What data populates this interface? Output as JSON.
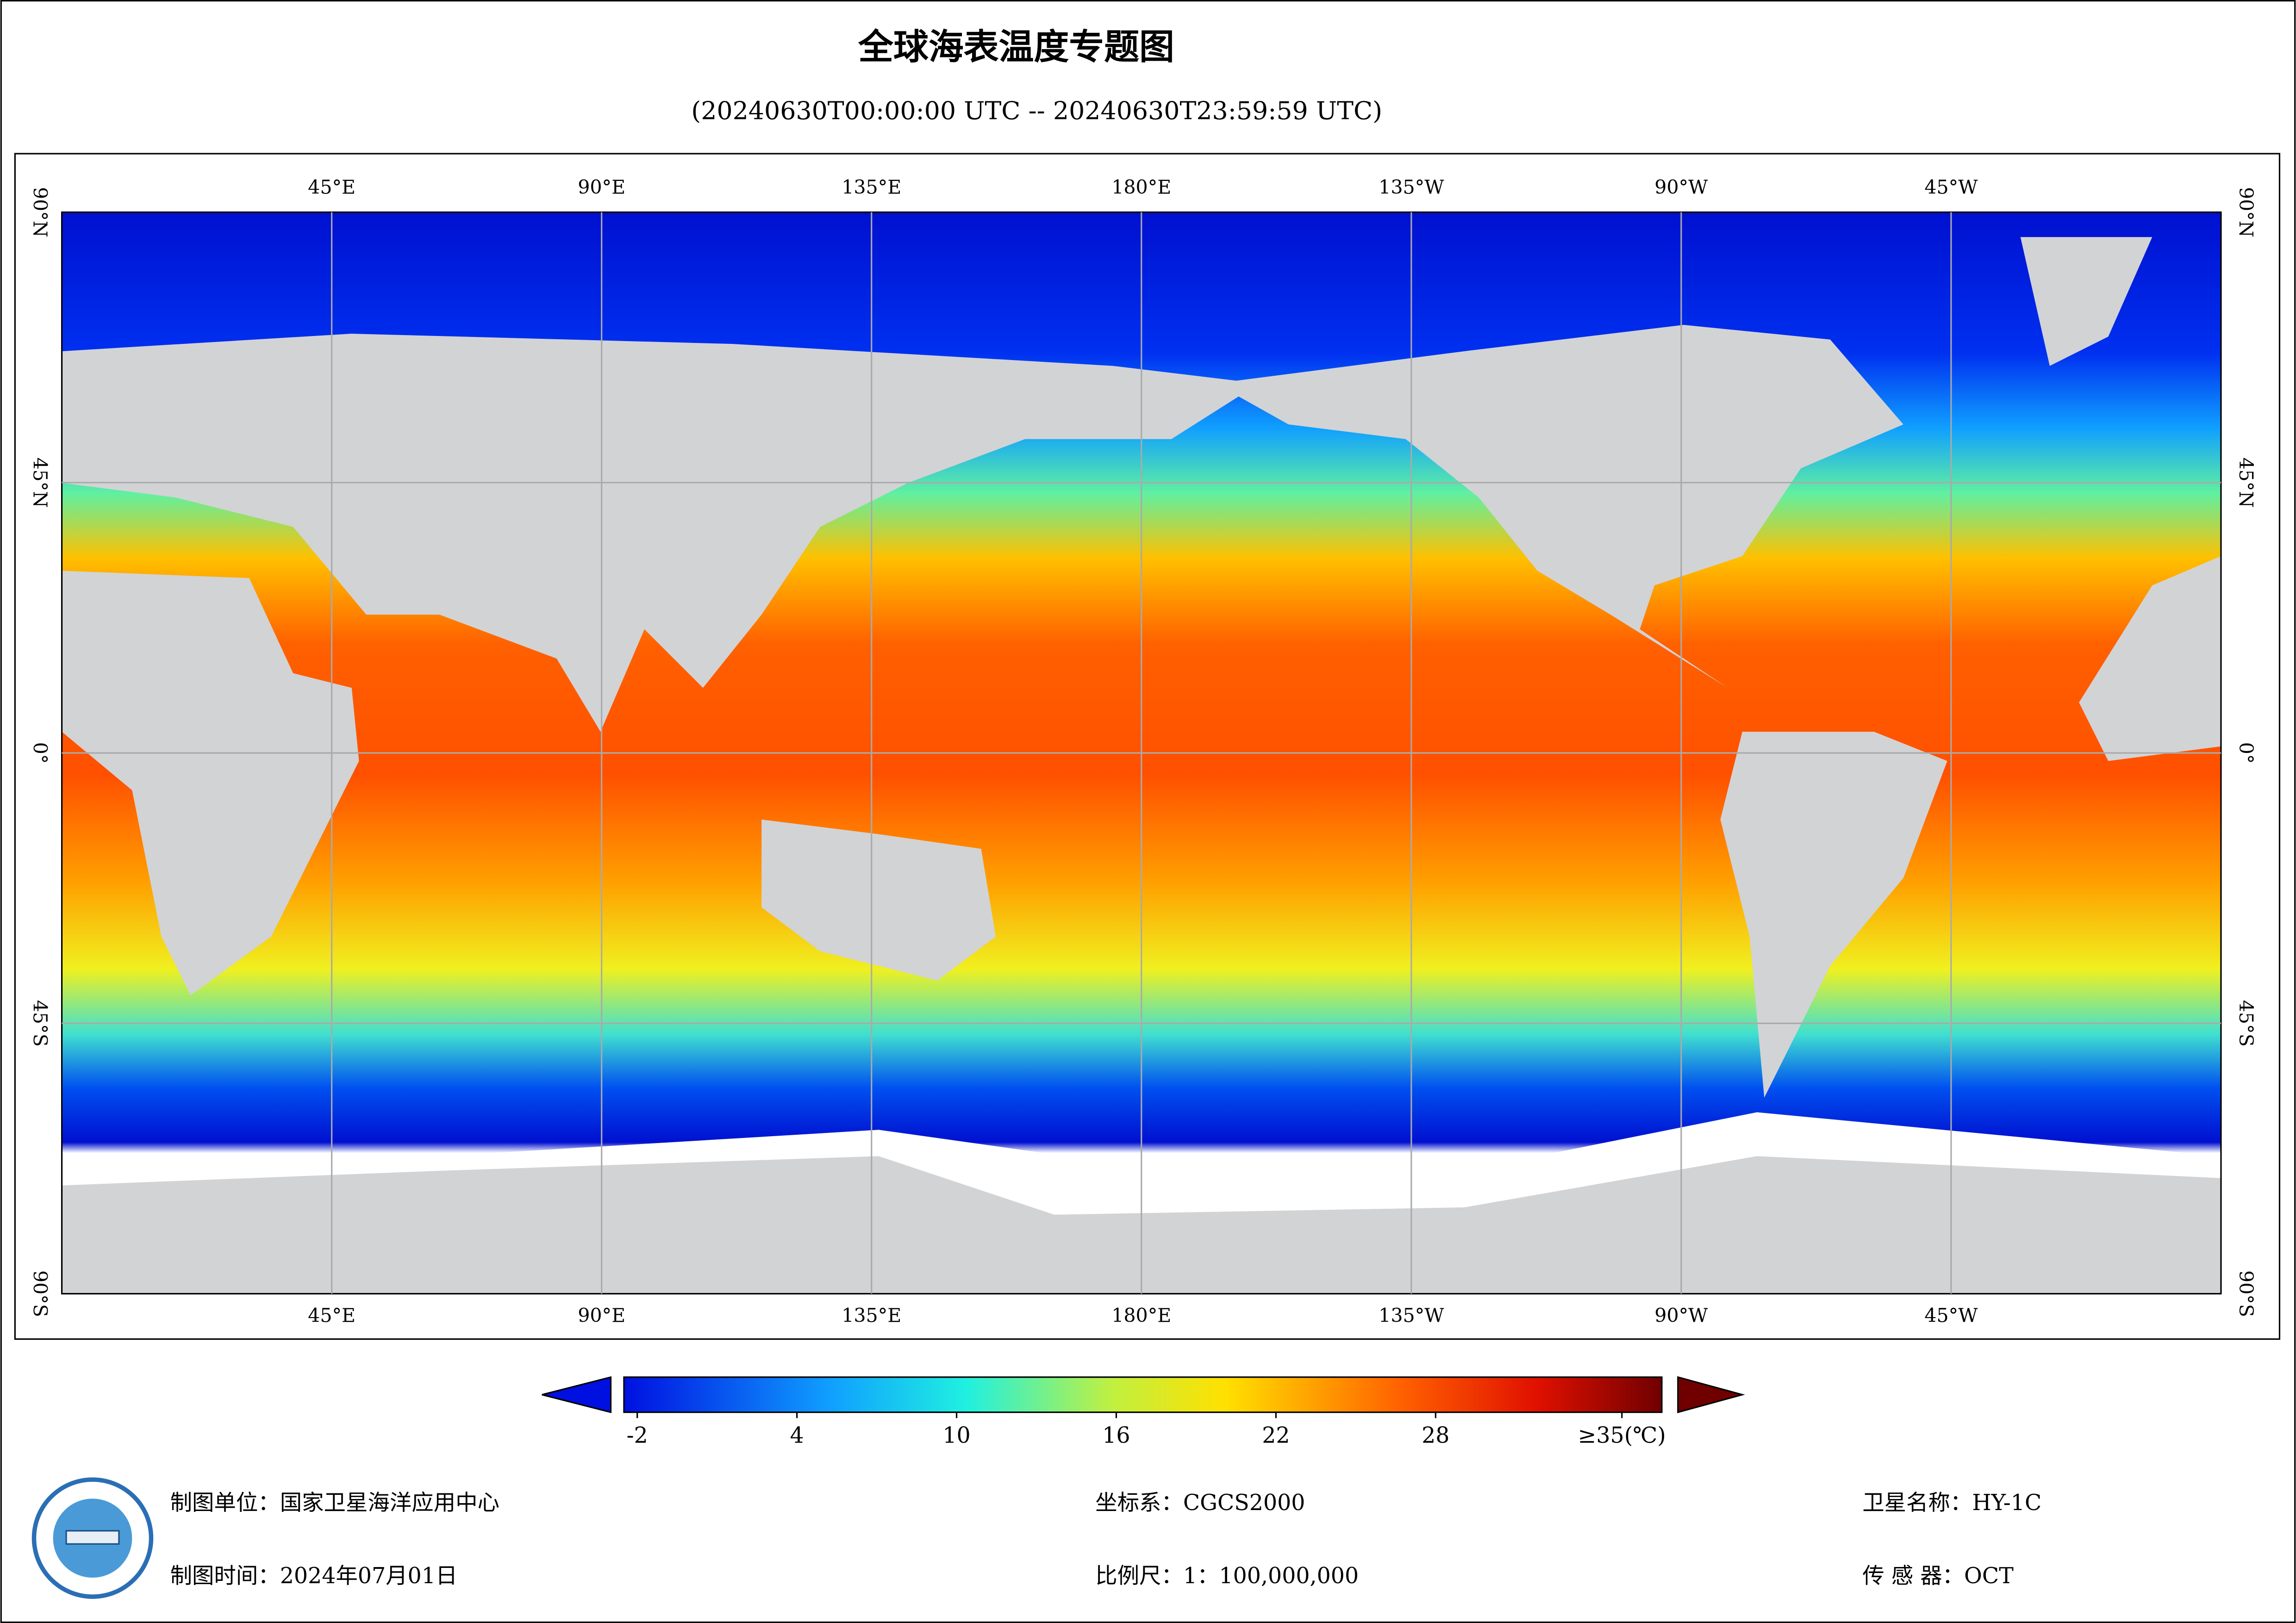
{
  "header": {
    "title": "全球海表温度专题图",
    "subtitle": "(20240630T00:00:00 UTC -- 20240630T23:59:59 UTC)"
  },
  "map": {
    "xlim": [
      0,
      360
    ],
    "ylim": [
      -90,
      90
    ],
    "lon_ticks": [
      {
        "value": 45,
        "label": "45°E"
      },
      {
        "value": 90,
        "label": "90°E"
      },
      {
        "value": 135,
        "label": "135°E"
      },
      {
        "value": 180,
        "label": "180°E"
      },
      {
        "value": 225,
        "label": "135°W"
      },
      {
        "value": 270,
        "label": "90°W"
      },
      {
        "value": 315,
        "label": "45°W"
      }
    ],
    "lat_ticks": [
      {
        "value": 90,
        "label": "90°N"
      },
      {
        "value": 45,
        "label": "45°N"
      },
      {
        "value": 0,
        "label": "0°"
      },
      {
        "value": -45,
        "label": "45°S"
      },
      {
        "value": -90,
        "label": "90°S"
      }
    ]
  },
  "colorbar": {
    "range": [
      -2.5,
      36.5
    ],
    "ticks": [
      -2,
      4,
      10,
      16,
      22,
      28,
      {
        "value": 35,
        "label": "≥35(℃)"
      }
    ]
  },
  "footer": {
    "rows": [
      [
        {
          "label": "制图单位：",
          "value": "国家卫星海洋应用中心"
        },
        {
          "label": "坐标系：",
          "value": "CGCS2000"
        },
        {
          "label": "卫星名称：",
          "value": "HY-1C"
        }
      ],
      [
        {
          "label": "制图时间：",
          "value": "2024年07月01日"
        },
        {
          "label": "比例尺：",
          "value": "1：100,000,000"
        },
        {
          "label": "传 感 器：",
          "value": "OCT"
        }
      ]
    ]
  }
}
